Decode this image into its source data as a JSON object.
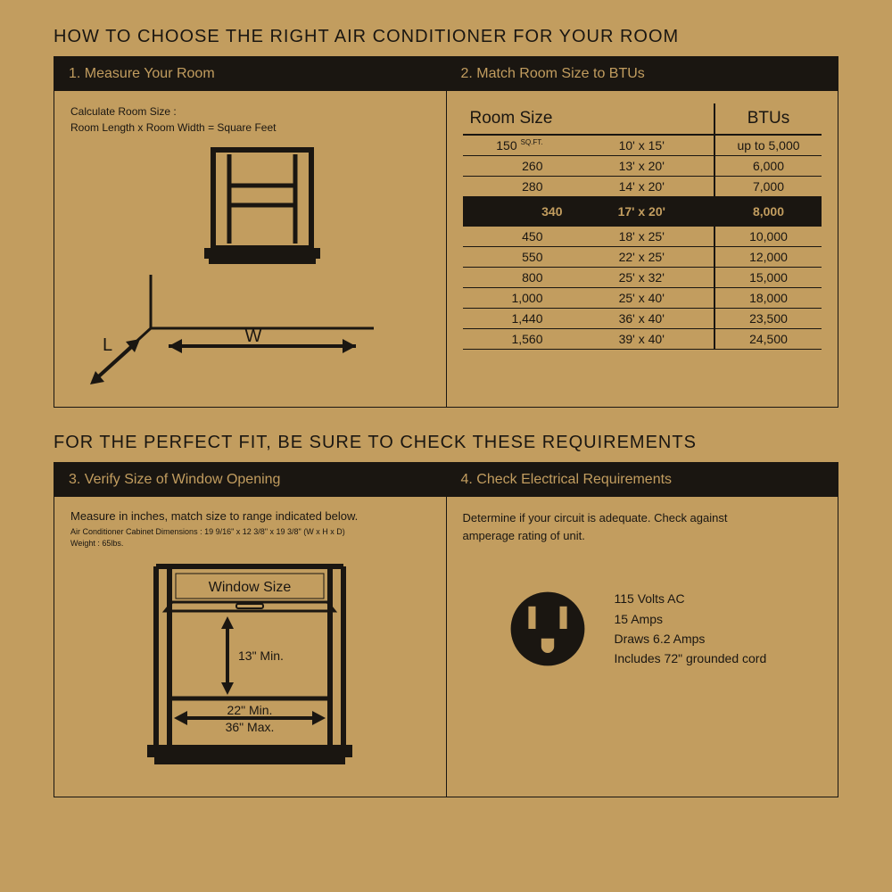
{
  "colors": {
    "bg": "#c29d5f",
    "ink": "#1a1611"
  },
  "title1": "HOW TO CHOOSE THE RIGHT AIR CONDITIONER FOR YOUR ROOM",
  "title2": "FOR THE PERFECT FIT, BE SURE TO CHECK THESE REQUIREMENTS",
  "panel1": {
    "header": "1. Measure Your Room",
    "calc_line1": "Calculate Room Size :",
    "calc_line2": "Room Length x Room Width = Square Feet",
    "labels": {
      "W": "W",
      "L": "L"
    }
  },
  "panel2": {
    "header": "2. Match Room Size to BTUs",
    "col1": "Room Size",
    "col2": "BTUs",
    "sqft_label": "SQ.FT.",
    "rows": [
      {
        "sqft": "150",
        "dims": "10' x 15'",
        "btu": "up to 5,000",
        "hl": false
      },
      {
        "sqft": "260",
        "dims": "13' x 20'",
        "btu": "6,000",
        "hl": false
      },
      {
        "sqft": "280",
        "dims": "14' x 20'",
        "btu": "7,000",
        "hl": false
      },
      {
        "sqft": "340",
        "dims": "17' x 20'",
        "btu": "8,000",
        "hl": true
      },
      {
        "sqft": "450",
        "dims": "18' x 25'",
        "btu": "10,000",
        "hl": false
      },
      {
        "sqft": "550",
        "dims": "22' x 25'",
        "btu": "12,000",
        "hl": false
      },
      {
        "sqft": "800",
        "dims": "25' x 32'",
        "btu": "15,000",
        "hl": false
      },
      {
        "sqft": "1,000",
        "dims": "25' x 40'",
        "btu": "18,000",
        "hl": false
      },
      {
        "sqft": "1,440",
        "dims": "36' x 40'",
        "btu": "23,500",
        "hl": false
      },
      {
        "sqft": "1,560",
        "dims": "39' x 40'",
        "btu": "24,500",
        "hl": false
      }
    ]
  },
  "panel3": {
    "header": "3. Verify Size of Window Opening",
    "measure": "Measure in inches, match size to range indicated below.",
    "dims1": "Air Conditioner Cabinet Dimensions : 19 9/16\" x 12 3/8\" x 19 3/8\" (W x H x D)",
    "dims2": "Weight : 65lbs.",
    "window_label": "Window Size",
    "h_min": "13\" Min.",
    "w_min": "22\" Min.",
    "w_max": "36\" Max."
  },
  "panel4": {
    "header": "4. Check Electrical Requirements",
    "text1": "Determine if your circuit is adequate. Check against",
    "text2": "amperage rating of unit.",
    "specs": [
      "115 Volts AC",
      "15 Amps",
      "Draws 6.2 Amps",
      "Includes 72\" grounded cord"
    ]
  }
}
